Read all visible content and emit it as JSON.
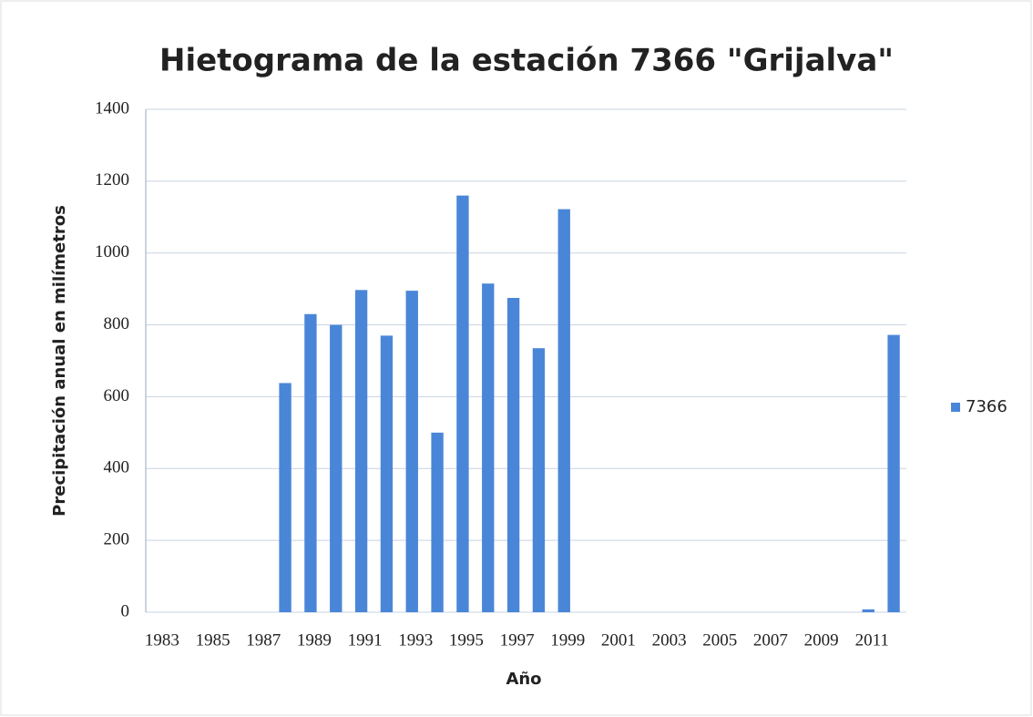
{
  "chart_data": {
    "type": "bar",
    "title": "Hietograma de la estación 7366 \"Grijalva\"",
    "x_label": "Año",
    "y_label": "Precipitación anual en milímetros",
    "categories": [
      "1983",
      null,
      "1985",
      null,
      "1987",
      null,
      "1989",
      null,
      "1991",
      null,
      "1993",
      null,
      "1995",
      null,
      "1997",
      null,
      "1999",
      null,
      "2001",
      null,
      "2003",
      null,
      "2005",
      null,
      "2007",
      null,
      "2009",
      null,
      "2011",
      null
    ],
    "series": [
      {
        "name": "7366",
        "color": "#4a86d8",
        "values": [
          null,
          null,
          null,
          null,
          null,
          638,
          830,
          800,
          897,
          770,
          895,
          500,
          1160,
          915,
          875,
          735,
          1122,
          null,
          null,
          null,
          null,
          null,
          null,
          null,
          null,
          null,
          null,
          null,
          8,
          772
        ]
      }
    ],
    "ylim": [
      0,
      1400
    ],
    "yticks": [
      0,
      200,
      400,
      600,
      800,
      1000,
      1200,
      1400
    ],
    "grid": true,
    "legend": "right"
  }
}
